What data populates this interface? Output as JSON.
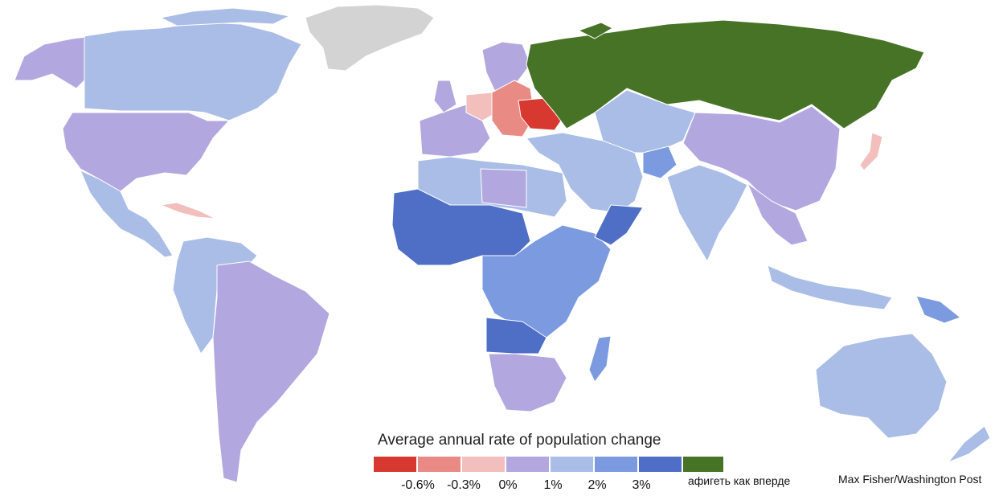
{
  "legend": {
    "title": "Average annual rate of population change",
    "swatches": [
      {
        "color": "#d7382f"
      },
      {
        "color": "#e98a84"
      },
      {
        "color": "#f2bfbc"
      },
      {
        "color": "#b2a8df"
      },
      {
        "color": "#aabde6"
      },
      {
        "color": "#7b9ae0"
      },
      {
        "color": "#4f6ec5"
      },
      {
        "color": "#477326"
      }
    ],
    "ticks": [
      "-0.6%",
      "-0.3%",
      "0%",
      "1%",
      "2%",
      "3%"
    ],
    "green_label": "афигеть как вперде"
  },
  "credit": "Max Fisher/Washington Post",
  "colors": {
    "no_data": "#d3d3d3",
    "ocean": "#ffffff"
  }
}
